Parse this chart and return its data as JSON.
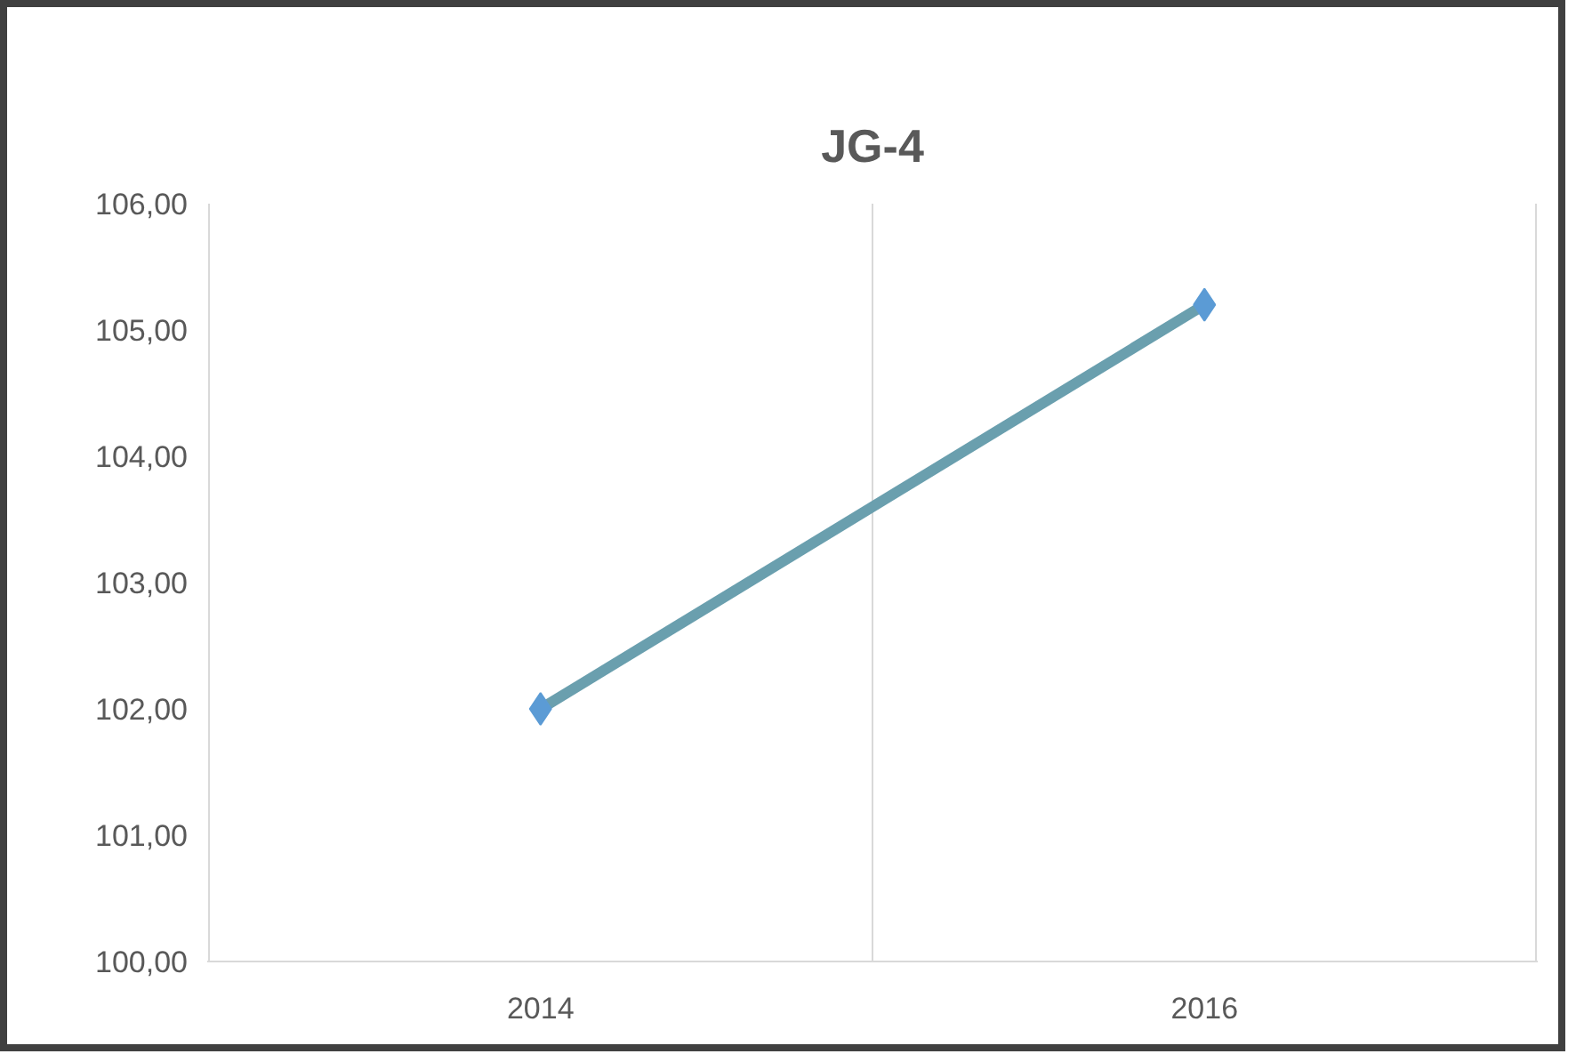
{
  "chart_data": {
    "type": "line",
    "title": "JG-4",
    "categories": [
      "2014",
      "2016"
    ],
    "series": [
      {
        "color": "#6a9fae",
        "values": [
          102.0,
          105.2
        ]
      }
    ],
    "ylim": [
      100,
      106
    ],
    "yticks": [
      {
        "value": 100,
        "label": "100,00"
      },
      {
        "value": 101,
        "label": "101,00"
      },
      {
        "value": 102,
        "label": "102,00"
      },
      {
        "value": 103,
        "label": "103,00"
      },
      {
        "value": 104,
        "label": "104,00"
      },
      {
        "value": 105,
        "label": "105,00"
      },
      {
        "value": 106,
        "label": "106,00"
      }
    ],
    "grid": "x",
    "marker": "diamond",
    "line_style": "solid"
  }
}
